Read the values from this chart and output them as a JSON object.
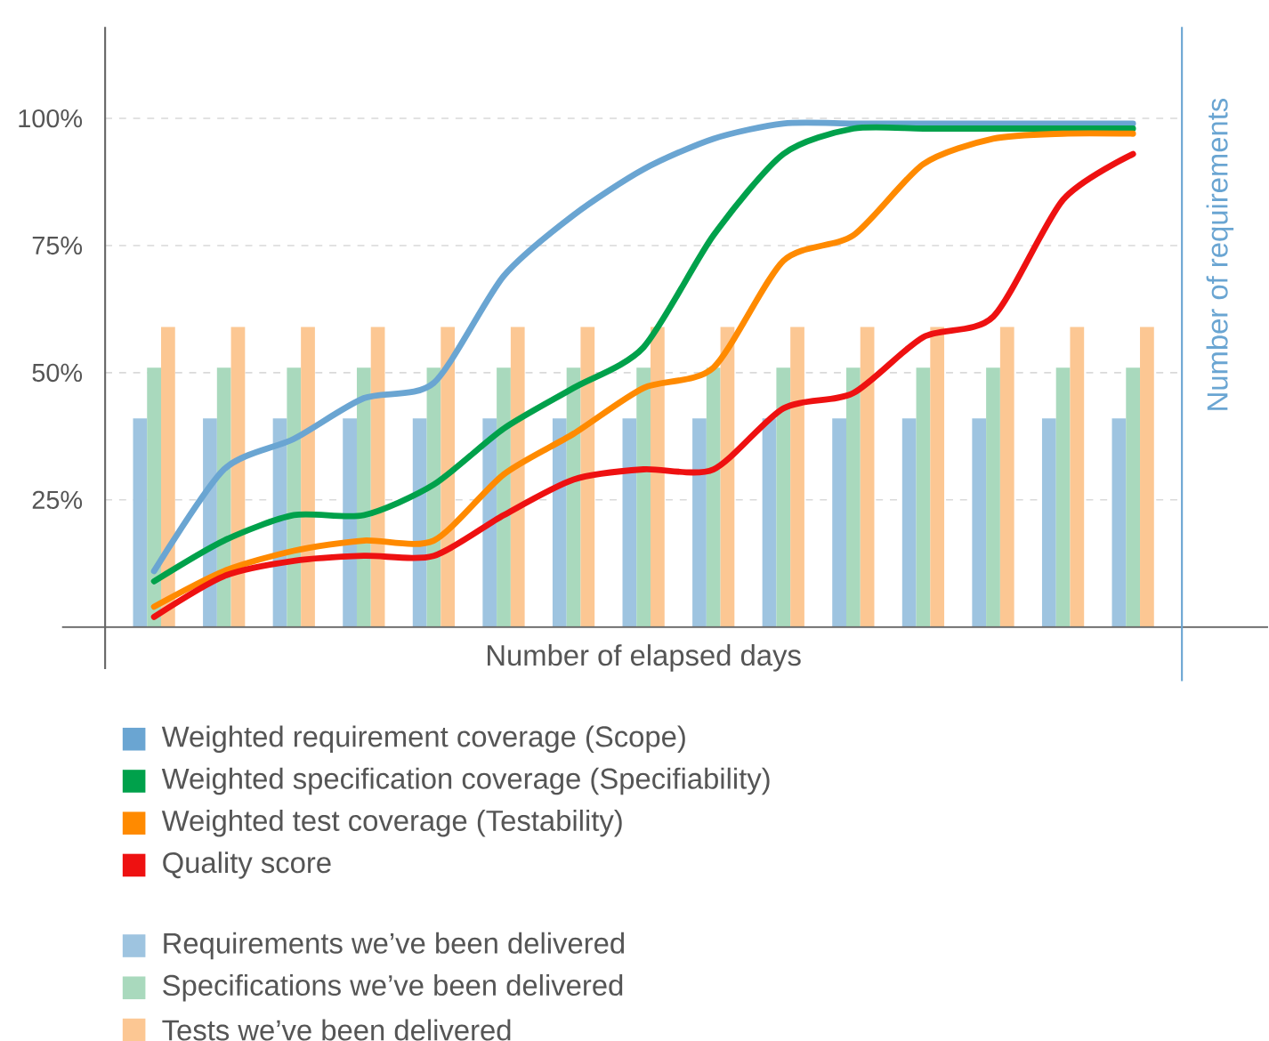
{
  "chart_data": {
    "type": "bar",
    "xlabel": "Number of elapsed days",
    "y2label": "Number of requirements",
    "categories": [
      null,
      null,
      null,
      null,
      null,
      null,
      null,
      null,
      null,
      null,
      null,
      null,
      null,
      null,
      null
    ],
    "ylim": [
      0,
      118
    ],
    "yticks": [
      {
        "value": 25,
        "label": "25%"
      },
      {
        "value": 50,
        "label": "50%"
      },
      {
        "value": 75,
        "label": "75%"
      },
      {
        "value": 100,
        "label": "100%"
      }
    ],
    "grid": "y",
    "legend": "bottom",
    "marker": "none",
    "line_style": "solid",
    "series": [
      {
        "name": "Weighted requirement coverage (Scope)",
        "type": "line",
        "color": "#6aa5d2",
        "values": [
          11,
          31,
          37,
          45,
          48,
          69,
          81,
          90,
          96,
          99,
          99,
          99,
          99,
          99,
          99
        ]
      },
      {
        "name": "Weighted specification coverage (Specifiability)",
        "type": "line",
        "color": "#00a14b",
        "values": [
          9,
          17,
          22,
          22,
          28,
          39,
          47,
          55,
          77,
          93,
          98,
          98,
          98,
          98,
          98
        ]
      },
      {
        "name": "Weighted test coverage (Testability)",
        "type": "line",
        "color": "#ff8a00",
        "values": [
          4,
          11,
          15,
          17,
          17,
          30,
          38,
          47,
          51,
          72,
          77,
          91,
          96,
          97,
          97
        ]
      },
      {
        "name": "Quality score",
        "type": "line",
        "color": "#ee1111",
        "values": [
          2,
          10,
          13,
          14,
          14,
          22,
          29,
          31,
          31,
          43,
          46,
          57,
          61,
          84,
          93
        ]
      },
      {
        "name": "Requirements we’ve been delivered",
        "color": "#9ec4e0",
        "values": [
          41,
          41,
          41,
          41,
          41,
          41,
          41,
          41,
          41,
          41,
          41,
          41,
          41,
          41,
          41
        ]
      },
      {
        "name": "Specifications we’ve been delivered",
        "color": "#a9d9bd",
        "values": [
          51,
          51,
          51,
          51,
          51,
          51,
          51,
          51,
          51,
          51,
          51,
          51,
          51,
          51,
          51
        ]
      },
      {
        "name": "Tests we’ve been delivered",
        "color": "#fcc793",
        "values": [
          59,
          59,
          59,
          59,
          59,
          59,
          59,
          59,
          59,
          59,
          59,
          59,
          59,
          59,
          59
        ]
      }
    ]
  }
}
